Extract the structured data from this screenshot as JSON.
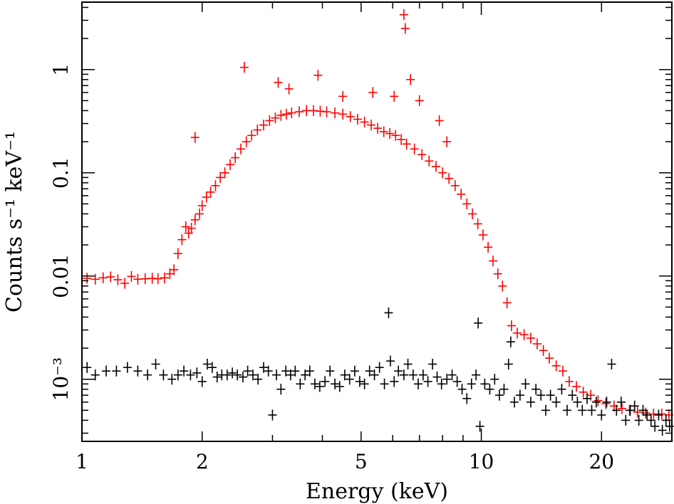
{
  "chart_data": {
    "type": "scatter",
    "xlabel": "Energy (keV)",
    "ylabel": "Counts s⁻¹ keV⁻¹",
    "x_scale": "log",
    "y_scale": "log",
    "xlim": [
      1,
      30
    ],
    "ylim": [
      0.00025,
      4.5
    ],
    "x_ticks": [
      {
        "value": 1,
        "label": "1"
      },
      {
        "value": 2,
        "label": "2"
      },
      {
        "value": 5,
        "label": "5"
      },
      {
        "value": 10,
        "label": "10"
      },
      {
        "value": 20,
        "label": "20"
      }
    ],
    "y_ticks": [
      {
        "value": 0.001,
        "label": "10⁻³"
      },
      {
        "value": 0.01,
        "label": "0.01"
      },
      {
        "value": 0.1,
        "label": "0.1"
      },
      {
        "value": 1,
        "label": "1"
      }
    ],
    "grid": false,
    "series": [
      {
        "color": "#ff0000",
        "points": [
          [
            1.03,
            0.0095
          ],
          [
            1.08,
            0.0093
          ],
          [
            1.13,
            0.0096
          ],
          [
            1.18,
            0.0098
          ],
          [
            1.23,
            0.0092
          ],
          [
            1.28,
            0.0085
          ],
          [
            1.33,
            0.0099
          ],
          [
            1.38,
            0.0093
          ],
          [
            1.44,
            0.0094
          ],
          [
            1.5,
            0.0095
          ],
          [
            1.55,
            0.0094
          ],
          [
            1.61,
            0.0096
          ],
          [
            1.66,
            0.0105
          ],
          [
            1.7,
            0.0115
          ],
          [
            1.74,
            0.0165
          ],
          [
            1.78,
            0.0225
          ],
          [
            1.82,
            0.03
          ],
          [
            1.85,
            0.026
          ],
          [
            1.88,
            0.029
          ],
          [
            1.92,
            0.035
          ],
          [
            1.97,
            0.04
          ],
          [
            2.0,
            0.048
          ],
          [
            2.05,
            0.058
          ],
          [
            2.1,
            0.065
          ],
          [
            2.16,
            0.075
          ],
          [
            2.22,
            0.09
          ],
          [
            2.28,
            0.1
          ],
          [
            2.35,
            0.12
          ],
          [
            2.42,
            0.14
          ],
          [
            2.5,
            0.17
          ],
          [
            2.58,
            0.2
          ],
          [
            2.66,
            0.23
          ],
          [
            2.75,
            0.26
          ],
          [
            2.85,
            0.29
          ],
          [
            2.95,
            0.32
          ],
          [
            3.05,
            0.34
          ],
          [
            3.15,
            0.36
          ],
          [
            3.25,
            0.37
          ],
          [
            3.35,
            0.38
          ],
          [
            3.5,
            0.39
          ],
          [
            3.65,
            0.4
          ],
          [
            3.8,
            0.4
          ],
          [
            3.95,
            0.395
          ],
          [
            4.1,
            0.39
          ],
          [
            4.3,
            0.38
          ],
          [
            4.5,
            0.37
          ],
          [
            4.7,
            0.35
          ],
          [
            4.9,
            0.33
          ],
          [
            5.1,
            0.31
          ],
          [
            5.3,
            0.29
          ],
          [
            5.5,
            0.27
          ],
          [
            5.7,
            0.25
          ],
          [
            5.9,
            0.24
          ],
          [
            6.1,
            0.23
          ],
          [
            6.3,
            0.21
          ],
          [
            6.5,
            0.19
          ],
          [
            6.8,
            0.17
          ],
          [
            7.1,
            0.15
          ],
          [
            7.4,
            0.13
          ],
          [
            7.7,
            0.115
          ],
          [
            8.0,
            0.1
          ],
          [
            8.3,
            0.088
          ],
          [
            8.6,
            0.075
          ],
          [
            8.9,
            0.062
          ],
          [
            9.2,
            0.05
          ],
          [
            9.5,
            0.04
          ],
          [
            9.8,
            0.032
          ],
          [
            10.1,
            0.025
          ],
          [
            10.4,
            0.019
          ],
          [
            10.7,
            0.014
          ],
          [
            11.0,
            0.0105
          ],
          [
            11.3,
            0.008
          ],
          [
            11.6,
            0.0055
          ],
          [
            11.9,
            0.0033
          ],
          [
            12.3,
            0.0028
          ],
          [
            12.8,
            0.0027
          ],
          [
            13.3,
            0.0025
          ],
          [
            13.8,
            0.0022
          ],
          [
            14.3,
            0.0019
          ],
          [
            14.8,
            0.0016
          ],
          [
            15.4,
            0.00135
          ],
          [
            16.0,
            0.0012
          ],
          [
            16.6,
            0.00095
          ],
          [
            17.3,
            0.00085
          ],
          [
            18.0,
            0.00075
          ],
          [
            18.8,
            0.0007
          ],
          [
            19.6,
            0.00062
          ],
          [
            20.5,
            0.00058
          ],
          [
            21.5,
            0.00055
          ],
          [
            22.5,
            0.00052
          ],
          [
            23.5,
            0.0005
          ],
          [
            24.6,
            0.00048
          ],
          [
            25.8,
            0.00047
          ],
          [
            27.0,
            0.00046
          ],
          [
            28.3,
            0.00046
          ],
          [
            29.5,
            0.00045
          ],
          [
            1.92,
            0.22
          ],
          [
            2.55,
            1.05
          ],
          [
            3.1,
            0.75
          ],
          [
            3.3,
            0.65
          ],
          [
            3.9,
            0.88
          ],
          [
            4.5,
            0.55
          ],
          [
            5.35,
            0.6
          ],
          [
            6.05,
            0.55
          ],
          [
            6.4,
            3.4
          ],
          [
            6.45,
            2.5
          ],
          [
            6.65,
            0.8
          ],
          [
            7.0,
            0.5
          ],
          [
            7.85,
            0.32
          ],
          [
            8.2,
            0.2
          ]
        ]
      },
      {
        "color": "#000000",
        "points": [
          [
            1.03,
            0.0013
          ],
          [
            1.08,
            0.0011
          ],
          [
            1.15,
            0.0012
          ],
          [
            1.22,
            0.0012
          ],
          [
            1.3,
            0.0013
          ],
          [
            1.38,
            0.0012
          ],
          [
            1.46,
            0.0011
          ],
          [
            1.53,
            0.0014
          ],
          [
            1.6,
            0.0011
          ],
          [
            1.68,
            0.001
          ],
          [
            1.74,
            0.0011
          ],
          [
            1.8,
            0.0012
          ],
          [
            1.87,
            0.0011
          ],
          [
            1.94,
            0.00115
          ],
          [
            2.0,
            0.00095
          ],
          [
            2.06,
            0.0014
          ],
          [
            2.12,
            0.0013
          ],
          [
            2.18,
            0.00105
          ],
          [
            2.24,
            0.0011
          ],
          [
            2.31,
            0.0011
          ],
          [
            2.38,
            0.00115
          ],
          [
            2.45,
            0.0011
          ],
          [
            2.53,
            0.00105
          ],
          [
            2.6,
            0.0012
          ],
          [
            2.68,
            0.0011
          ],
          [
            2.76,
            0.001
          ],
          [
            2.85,
            0.0013
          ],
          [
            2.93,
            0.0012
          ],
          [
            3.0,
            0.00045
          ],
          [
            3.07,
            0.0011
          ],
          [
            3.15,
            0.0008
          ],
          [
            3.24,
            0.0012
          ],
          [
            3.33,
            0.0011
          ],
          [
            3.42,
            0.0012
          ],
          [
            3.52,
            0.0009
          ],
          [
            3.62,
            0.0011
          ],
          [
            3.72,
            0.0012
          ],
          [
            3.83,
            0.0009
          ],
          [
            3.94,
            0.00085
          ],
          [
            4.06,
            0.00095
          ],
          [
            4.18,
            0.0012
          ],
          [
            4.3,
            0.0009
          ],
          [
            4.42,
            0.00085
          ],
          [
            4.55,
            0.0011
          ],
          [
            4.68,
            0.001
          ],
          [
            4.82,
            0.0012
          ],
          [
            4.96,
            0.00095
          ],
          [
            5.1,
            0.0009
          ],
          [
            5.25,
            0.0012
          ],
          [
            5.4,
            0.0011
          ],
          [
            5.56,
            0.0013
          ],
          [
            5.72,
            0.0009
          ],
          [
            5.86,
            0.0044
          ],
          [
            5.92,
            0.0015
          ],
          [
            6.05,
            0.00095
          ],
          [
            6.2,
            0.0012
          ],
          [
            6.4,
            0.0011
          ],
          [
            6.55,
            0.0014
          ],
          [
            6.75,
            0.0011
          ],
          [
            6.95,
            0.0009
          ],
          [
            7.15,
            0.0011
          ],
          [
            7.35,
            0.00095
          ],
          [
            7.55,
            0.0014
          ],
          [
            7.75,
            0.00105
          ],
          [
            7.95,
            0.0009
          ],
          [
            8.2,
            0.001
          ],
          [
            8.45,
            0.0011
          ],
          [
            8.7,
            0.00095
          ],
          [
            8.95,
            0.0008
          ],
          [
            9.2,
            0.00065
          ],
          [
            9.45,
            0.0009
          ],
          [
            9.7,
            0.0011
          ],
          [
            9.82,
            0.0035
          ],
          [
            9.92,
            0.00035
          ],
          [
            10.2,
            0.0009
          ],
          [
            10.5,
            0.0008
          ],
          [
            10.8,
            0.001
          ],
          [
            11.1,
            0.0007
          ],
          [
            11.4,
            0.0008
          ],
          [
            11.7,
            0.0014
          ],
          [
            11.85,
            0.0023
          ],
          [
            12.1,
            0.0006
          ],
          [
            12.5,
            0.0007
          ],
          [
            12.9,
            0.0009
          ],
          [
            13.3,
            0.0006
          ],
          [
            13.7,
            0.0008
          ],
          [
            14.1,
            0.0007
          ],
          [
            14.5,
            0.0005
          ],
          [
            14.9,
            0.0007
          ],
          [
            15.4,
            0.0006
          ],
          [
            15.9,
            0.0008
          ],
          [
            16.4,
            0.0005
          ],
          [
            16.9,
            0.0007
          ],
          [
            17.4,
            0.0006
          ],
          [
            17.9,
            0.0005
          ],
          [
            18.4,
            0.00065
          ],
          [
            18.9,
            0.0005
          ],
          [
            19.4,
            0.0006
          ],
          [
            20.0,
            0.00045
          ],
          [
            20.6,
            0.0006
          ],
          [
            21.2,
            0.0014
          ],
          [
            21.8,
            0.0005
          ],
          [
            22.4,
            0.0006
          ],
          [
            23.0,
            0.0004
          ],
          [
            23.6,
            0.0005
          ],
          [
            24.2,
            0.00055
          ],
          [
            24.8,
            0.0004
          ],
          [
            25.4,
            0.0005
          ],
          [
            26.0,
            0.00045
          ],
          [
            26.6,
            0.0004
          ],
          [
            27.2,
            0.00035
          ],
          [
            27.8,
            0.00045
          ],
          [
            28.4,
            0.00032
          ],
          [
            29.0,
            0.0004
          ],
          [
            29.6,
            0.00035
          ]
        ]
      }
    ]
  }
}
